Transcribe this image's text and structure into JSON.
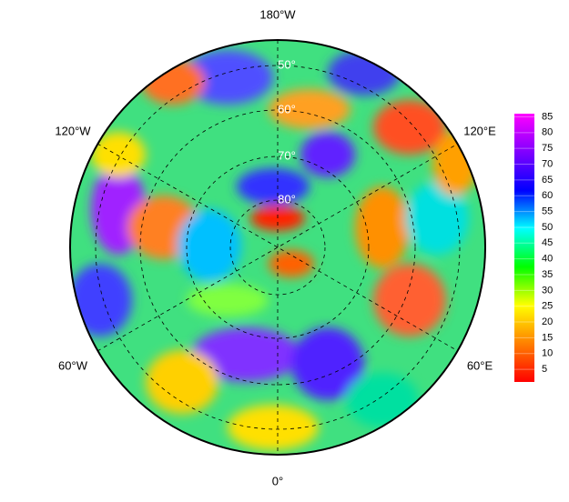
{
  "map": {
    "longitude_labels": [
      "180°W",
      "120°W",
      "120°E",
      "60°W",
      "60°E",
      "0°"
    ],
    "latitude_labels": [
      "50°",
      "60°",
      "70°",
      "80°"
    ]
  },
  "colorbar": {
    "range": [
      1,
      86
    ],
    "ticks": [
      5,
      10,
      15,
      20,
      25,
      30,
      35,
      40,
      45,
      50,
      55,
      60,
      65,
      70,
      75,
      80,
      85
    ],
    "colors": [
      "#ff0000",
      "#ff8000",
      "#ffff00",
      "#00ff00",
      "#00ffff",
      "#0000ff",
      "#8000ff",
      "#ff00ff"
    ]
  }
}
